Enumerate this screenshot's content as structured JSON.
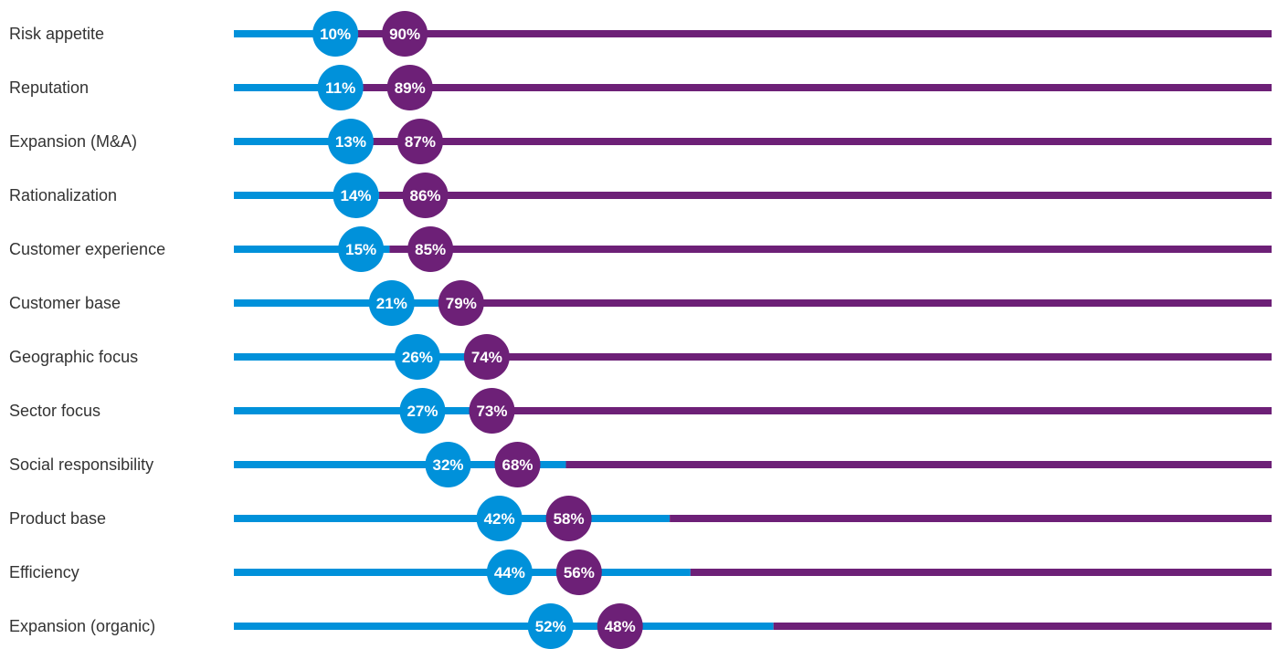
{
  "chart_data": {
    "type": "bar",
    "orientation": "horizontal",
    "stacked": true,
    "normalized_total": 100,
    "unit": "%",
    "categories": [
      "Risk appetite",
      "Reputation",
      "Expansion (M&A)",
      "Rationalization",
      "Customer experience",
      "Customer base",
      "Geographic focus",
      "Sector focus",
      "Social responsibility",
      "Product base",
      "Efficiency",
      "Expansion (organic)"
    ],
    "series": [
      {
        "color": "#0091DA",
        "values": [
          10,
          11,
          13,
          14,
          15,
          21,
          26,
          27,
          32,
          42,
          44,
          52
        ],
        "labels": [
          "10%",
          "11%",
          "13%",
          "14%",
          "15%",
          "21%",
          "26%",
          "27%",
          "32%",
          "42%",
          "44%",
          "52%"
        ]
      },
      {
        "color": "#6D2077",
        "values": [
          90,
          89,
          87,
          86,
          85,
          79,
          74,
          73,
          68,
          58,
          56,
          48
        ],
        "labels": [
          "90%",
          "89%",
          "87%",
          "86%",
          "85%",
          "79%",
          "74%",
          "73%",
          "68%",
          "58%",
          "56%",
          "48%"
        ]
      }
    ],
    "legend": "none",
    "grid": false,
    "xlim": [
      0,
      100
    ]
  }
}
